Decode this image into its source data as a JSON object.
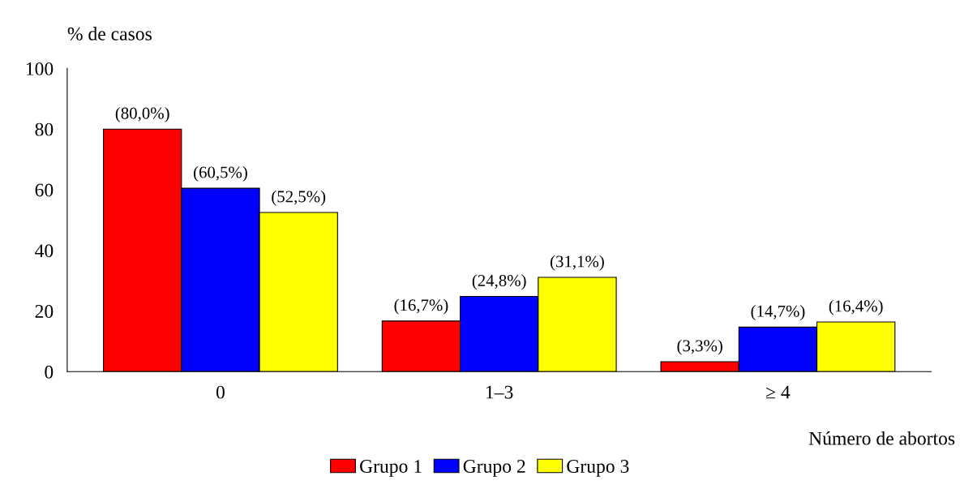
{
  "chart_data": {
    "type": "bar",
    "xlabel": "Número de abortos",
    "ylabel": "% de casos",
    "categories": [
      "0",
      "1–3",
      "≥ 4"
    ],
    "series": [
      {
        "name": "Grupo 1",
        "color": "#ff0000",
        "values": [
          80.0,
          16.7,
          3.3
        ],
        "value_labels": [
          "(80,0%)",
          "(16,7%)",
          "(3,3%)"
        ]
      },
      {
        "name": "Grupo 2",
        "color": "#0000ff",
        "values": [
          60.5,
          24.8,
          14.7
        ],
        "value_labels": [
          "(60,5%)",
          "(24,8%)",
          "(14,7%)"
        ]
      },
      {
        "name": "Grupo 3",
        "color": "#ffff00",
        "values": [
          52.5,
          31.1,
          16.4
        ],
        "value_labels": [
          "(52,5%)",
          "(31,1%)",
          "(16,4%)"
        ]
      }
    ],
    "ylim": [
      0,
      100
    ],
    "yticks": [
      0,
      20,
      40,
      60,
      80,
      100
    ],
    "grid": false,
    "legend": "bottom"
  }
}
